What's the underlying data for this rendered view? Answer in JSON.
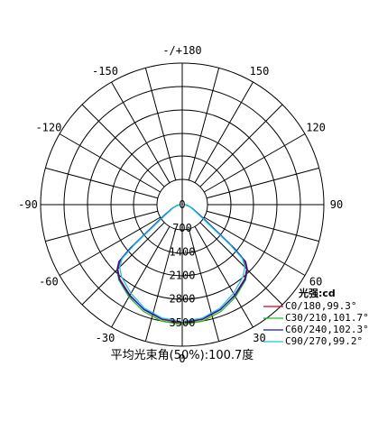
{
  "chart_data": {
    "type": "polar",
    "angle_labels": [
      {
        "deg": 180,
        "text": "-/+180"
      },
      {
        "deg": 150,
        "text": "150"
      },
      {
        "deg": -150,
        "text": "-150"
      },
      {
        "deg": 120,
        "text": "120"
      },
      {
        "deg": -120,
        "text": "-120"
      },
      {
        "deg": 90,
        "text": "90"
      },
      {
        "deg": -90,
        "text": "-90"
      },
      {
        "deg": 60,
        "text": "60"
      },
      {
        "deg": -60,
        "text": "-60"
      },
      {
        "deg": 30,
        "text": "30"
      },
      {
        "deg": -30,
        "text": "-30"
      },
      {
        "deg": 0,
        "text": "0"
      }
    ],
    "radial_labels": [
      "0",
      "700",
      "1400",
      "2100",
      "2800",
      "3500"
    ],
    "radial_values": [
      0,
      700,
      1400,
      2100,
      2800,
      3500
    ],
    "r_max": 4200,
    "legend_title": "光强:cd",
    "series": [
      {
        "name": "C0/180,99.3°",
        "color": "#d0001a",
        "points": [
          [
            0,
            3510
          ],
          [
            10,
            3460
          ],
          [
            20,
            3320
          ],
          [
            30,
            3100
          ],
          [
            40,
            2880
          ],
          [
            45,
            2700
          ],
          [
            48,
            2470
          ],
          [
            50,
            1900
          ],
          [
            55,
            840
          ],
          [
            60,
            540
          ],
          [
            70,
            300
          ],
          [
            80,
            160
          ],
          [
            90,
            70
          ]
        ]
      },
      {
        "name": "C30/210,101.7°",
        "color": "#1fbf1f",
        "points": [
          [
            0,
            3560
          ],
          [
            10,
            3510
          ],
          [
            20,
            3370
          ],
          [
            30,
            3160
          ],
          [
            40,
            2920
          ],
          [
            45,
            2740
          ],
          [
            48,
            2520
          ],
          [
            50,
            1980
          ],
          [
            55,
            880
          ],
          [
            60,
            560
          ],
          [
            70,
            310
          ],
          [
            80,
            165
          ],
          [
            90,
            70
          ]
        ]
      },
      {
        "name": "C60/240,102.3°",
        "color": "#1414c8",
        "points": [
          [
            0,
            3480
          ],
          [
            10,
            3440
          ],
          [
            20,
            3310
          ],
          [
            30,
            3120
          ],
          [
            40,
            2900
          ],
          [
            45,
            2730
          ],
          [
            48,
            2530
          ],
          [
            50,
            2030
          ],
          [
            55,
            920
          ],
          [
            60,
            580
          ],
          [
            70,
            320
          ],
          [
            80,
            170
          ],
          [
            90,
            72
          ]
        ]
      },
      {
        "name": "C90/270,99.2°",
        "color": "#19c8dc",
        "points": [
          [
            0,
            3470
          ],
          [
            10,
            3420
          ],
          [
            20,
            3270
          ],
          [
            30,
            3040
          ],
          [
            40,
            2800
          ],
          [
            45,
            2620
          ],
          [
            48,
            2400
          ],
          [
            50,
            1850
          ],
          [
            55,
            820
          ],
          [
            60,
            520
          ],
          [
            70,
            290
          ],
          [
            80,
            155
          ],
          [
            90,
            68
          ]
        ]
      }
    ]
  },
  "footer_text": "平均光束角(50%):100.7度"
}
